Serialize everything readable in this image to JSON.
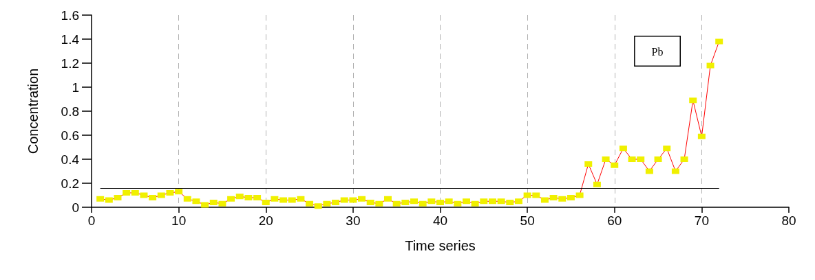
{
  "chart_data": {
    "type": "line",
    "xlabel": "Time series",
    "ylabel": "Concentration",
    "annotations": [
      "Pb"
    ],
    "x": [
      1,
      2,
      3,
      4,
      5,
      6,
      7,
      8,
      9,
      10,
      11,
      12,
      13,
      14,
      15,
      16,
      17,
      18,
      19,
      20,
      21,
      22,
      23,
      24,
      25,
      26,
      27,
      28,
      29,
      30,
      31,
      32,
      33,
      34,
      35,
      36,
      37,
      38,
      39,
      40,
      41,
      42,
      43,
      44,
      45,
      46,
      47,
      48,
      49,
      50,
      51,
      52,
      53,
      54,
      55,
      56,
      57,
      58,
      59,
      60,
      61,
      62,
      63,
      64,
      65,
      66,
      67,
      68,
      69,
      70,
      71,
      72
    ],
    "series": [
      {
        "color": "#ff0000",
        "colors": [
          "#f0f000",
          "#f0f000",
          "#f0f000",
          "#f0f000",
          "#f0f000",
          "#f0f000",
          "#f0f000",
          "#f0f000",
          "#f0f000",
          "#f0f000",
          "#f0f000",
          "#f0f000",
          "#f0f000",
          "#f0f000",
          "#f0f000",
          "#f0f000",
          "#f0f000",
          "#f0f000",
          "#f0f000",
          "#f0f000",
          "#f0f000",
          "#f0f000",
          "#f0f000",
          "#f0f000",
          "#f0f000",
          "#f0f000",
          "#f0f000",
          "#f0f000",
          "#f0f000",
          "#f0f000",
          "#f0f000",
          "#f0f000",
          "#f0f000",
          "#f0f000",
          "#f0f000",
          "#f0f000",
          "#f0f000",
          "#f0f000",
          "#f0f000",
          "#f0f000",
          "#f0f000",
          "#f0f000",
          "#f0f000",
          "#f0f000",
          "#f0f000",
          "#f0f000",
          "#f0f000",
          "#f0f000",
          "#f0f000",
          "#f0f000",
          "#f0f000",
          "#f0f000",
          "#f0f000",
          "#f0f000",
          "#f0f000",
          "#f0f000",
          "#f0f000",
          "#f0f000",
          "#f0f000",
          "#f0f000",
          "#f0f000",
          "#f0f000",
          "#f0f000",
          "#f0f000",
          "#f0f000",
          "#f0f000",
          "#f0f000",
          "#f0f000",
          "#f0f000",
          "#f0f000",
          "#f0f000",
          "#f0f000"
        ],
        "values": [
          0.07,
          0.06,
          0.08,
          0.12,
          0.12,
          0.1,
          0.08,
          0.1,
          0.12,
          0.13,
          0.07,
          0.05,
          0.02,
          0.04,
          0.03,
          0.07,
          0.09,
          0.08,
          0.08,
          0.04,
          0.07,
          0.06,
          0.06,
          0.07,
          0.03,
          0.01,
          0.03,
          0.04,
          0.06,
          0.06,
          0.07,
          0.04,
          0.03,
          0.07,
          0.03,
          0.04,
          0.05,
          0.03,
          0.05,
          0.04,
          0.05,
          0.03,
          0.05,
          0.03,
          0.05,
          0.05,
          0.05,
          0.04,
          0.05,
          0.1,
          0.1,
          0.06,
          0.08,
          0.07,
          0.08,
          0.1,
          0.36,
          0.19,
          0.4,
          0.35,
          0.49,
          0.4,
          0.4,
          0.3,
          0.4,
          0.49,
          0.3,
          0.4,
          0.89,
          0.59,
          1.18,
          1.38
        ]
      }
    ],
    "ref_lines": [
      {
        "axis": "y",
        "value": 0.16,
        "color": "#000000",
        "line_style": "solid"
      }
    ],
    "xlim": [
      0,
      80
    ],
    "xticks": [
      0,
      10,
      20,
      30,
      40,
      50,
      60,
      70,
      80
    ],
    "ylim": [
      0,
      1.6
    ],
    "yticks": [
      0,
      0.2,
      0.4,
      0.6,
      0.8,
      1,
      1.2,
      1.4,
      1.6
    ],
    "grid": "x",
    "marker": "square",
    "line_style": "solid"
  }
}
